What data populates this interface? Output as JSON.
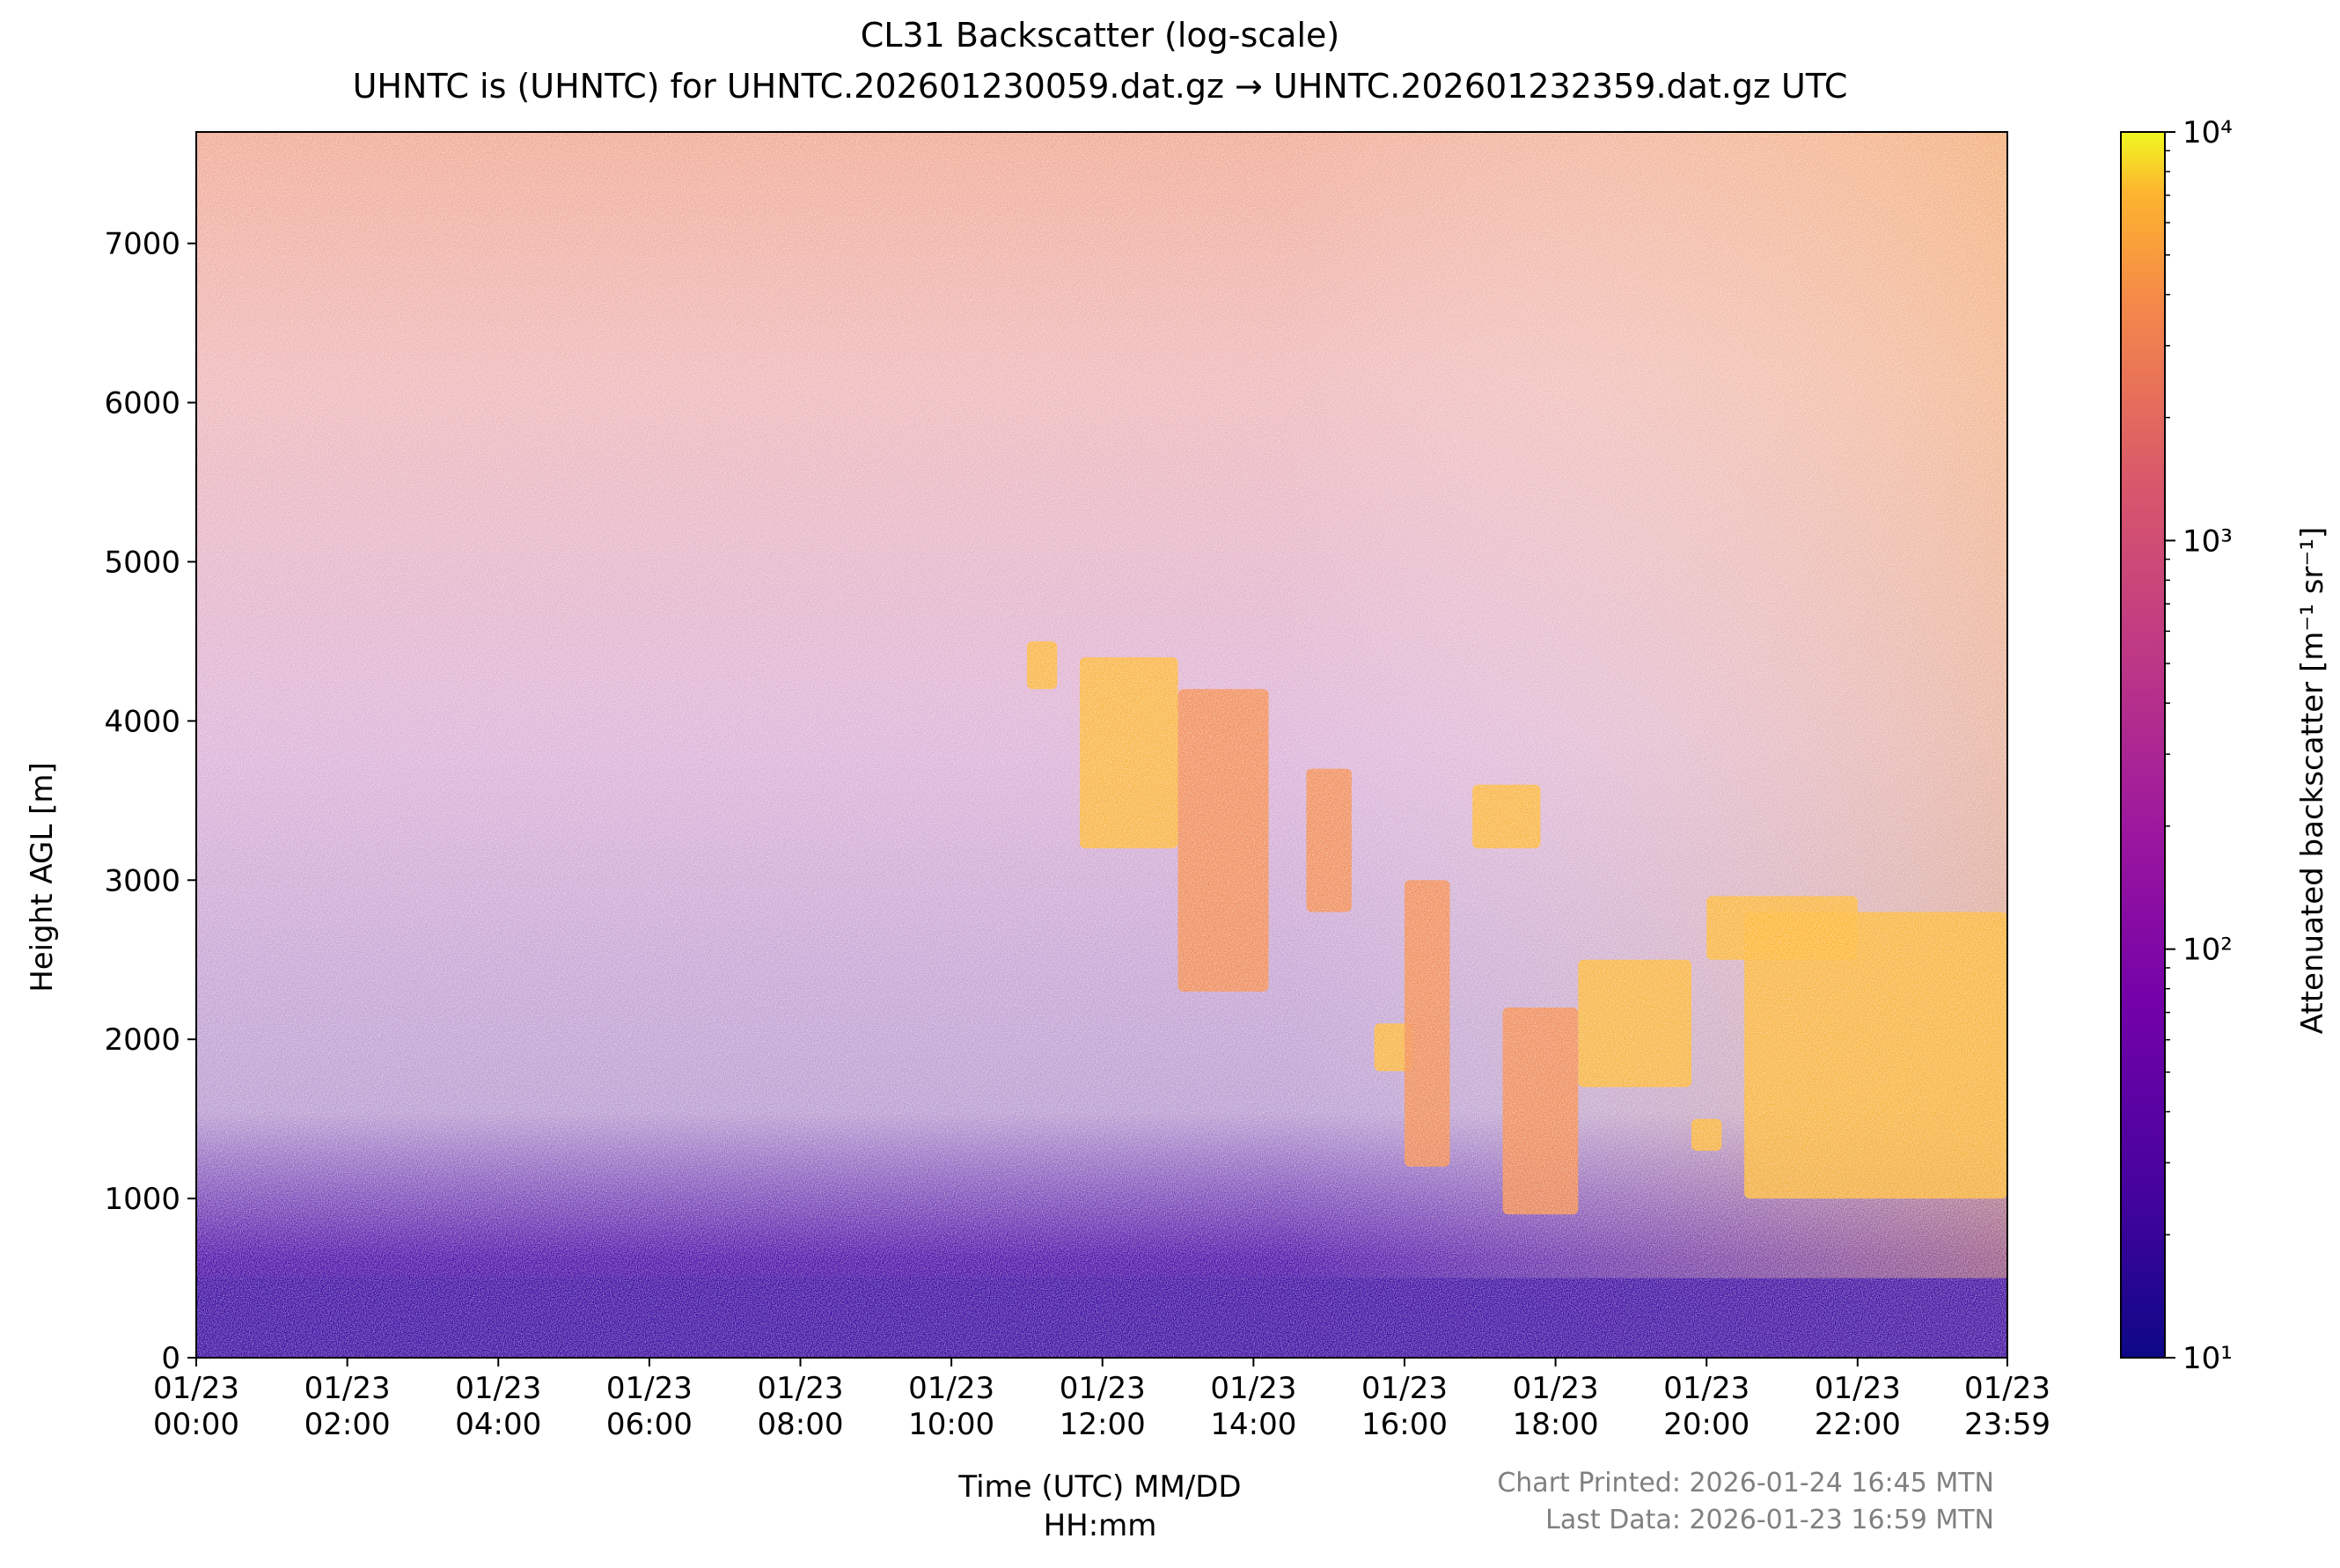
{
  "chart_data": {
    "type": "heatmap",
    "title": "CL31 Backscatter (log-scale)",
    "subtitle": "UHNTC is (UHNTC) for UHNTC.202601230059.dat.gz → UHNTC.202601232359.dat.gz UTC",
    "xlabel_line1": "Time (UTC) MM/DD",
    "xlabel_line2": "HH:mm",
    "ylabel": "Height AGL [m]",
    "colorbar_label": "Attenuated backscatter [m⁻¹ sr⁻¹]",
    "colormap": "plasma",
    "color_scale": "log",
    "color_range": [
      10,
      10000
    ],
    "colorbar_ticks": [
      {
        "value": 10,
        "label": "10¹"
      },
      {
        "value": 100,
        "label": "10²"
      },
      {
        "value": 1000,
        "label": "10³"
      },
      {
        "value": 10000,
        "label": "10⁴"
      }
    ],
    "x_range_hours": [
      0,
      23.983
    ],
    "x_ticks": [
      {
        "hour": 0,
        "date": "01/23",
        "time": "00:00"
      },
      {
        "hour": 2,
        "date": "01/23",
        "time": "02:00"
      },
      {
        "hour": 4,
        "date": "01/23",
        "time": "04:00"
      },
      {
        "hour": 6,
        "date": "01/23",
        "time": "06:00"
      },
      {
        "hour": 8,
        "date": "01/23",
        "time": "08:00"
      },
      {
        "hour": 10,
        "date": "01/23",
        "time": "10:00"
      },
      {
        "hour": 12,
        "date": "01/23",
        "time": "12:00"
      },
      {
        "hour": 14,
        "date": "01/23",
        "time": "14:00"
      },
      {
        "hour": 16,
        "date": "01/23",
        "time": "16:00"
      },
      {
        "hour": 18,
        "date": "01/23",
        "time": "18:00"
      },
      {
        "hour": 20,
        "date": "01/23",
        "time": "20:00"
      },
      {
        "hour": 22,
        "date": "01/23",
        "time": "22:00"
      },
      {
        "hour": 23.983,
        "date": "01/23",
        "time": "23:59"
      }
    ],
    "y_range": [
      0,
      7700
    ],
    "y_ticks": [
      0,
      1000,
      2000,
      3000,
      4000,
      5000,
      6000,
      7000
    ],
    "features": [
      {
        "name": "surface layer",
        "hour_start": 0,
        "hour_end": 23.98,
        "height_bottom": 0,
        "height_top": 500,
        "backscatter": 20
      },
      {
        "name": "cloud",
        "hour_start": 11.0,
        "hour_end": 11.4,
        "height_bottom": 4200,
        "height_top": 4500,
        "backscatter": 3500
      },
      {
        "name": "cloud",
        "hour_start": 11.7,
        "hour_end": 13.0,
        "height_bottom": 3200,
        "height_top": 4400,
        "backscatter": 3000
      },
      {
        "name": "cloud",
        "hour_start": 13.0,
        "hour_end": 14.2,
        "height_bottom": 2300,
        "height_top": 4200,
        "backscatter": 2500
      },
      {
        "name": "cloud",
        "hour_start": 14.7,
        "hour_end": 15.3,
        "height_bottom": 2800,
        "height_top": 3700,
        "backscatter": 1500
      },
      {
        "name": "cloud",
        "hour_start": 15.6,
        "hour_end": 16.1,
        "height_bottom": 1800,
        "height_top": 2100,
        "backscatter": 3000
      },
      {
        "name": "cloud",
        "hour_start": 16.0,
        "hour_end": 16.6,
        "height_bottom": 1200,
        "height_top": 3000,
        "backscatter": 2000
      },
      {
        "name": "cloud",
        "hour_start": 16.9,
        "hour_end": 17.8,
        "height_bottom": 3200,
        "height_top": 3600,
        "backscatter": 3000
      },
      {
        "name": "cloud",
        "hour_start": 17.3,
        "hour_end": 18.3,
        "height_bottom": 900,
        "height_top": 2200,
        "backscatter": 2500
      },
      {
        "name": "cloud",
        "hour_start": 18.3,
        "hour_end": 19.8,
        "height_bottom": 1700,
        "height_top": 2500,
        "backscatter": 3500
      },
      {
        "name": "cloud",
        "hour_start": 19.8,
        "hour_end": 20.2,
        "height_bottom": 1300,
        "height_top": 1500,
        "backscatter": 3000
      },
      {
        "name": "cloud",
        "hour_start": 20.0,
        "hour_end": 22.0,
        "height_bottom": 2500,
        "height_top": 2900,
        "backscatter": 4000
      },
      {
        "name": "cloud",
        "hour_start": 20.5,
        "hour_end": 23.98,
        "height_bottom": 1000,
        "height_top": 2800,
        "backscatter": 3000
      }
    ]
  },
  "footer": {
    "printed": "Chart Printed: 2026-01-24 16:45 MTN",
    "last_data": "Last Data: 2026-01-23 16:59 MTN"
  }
}
